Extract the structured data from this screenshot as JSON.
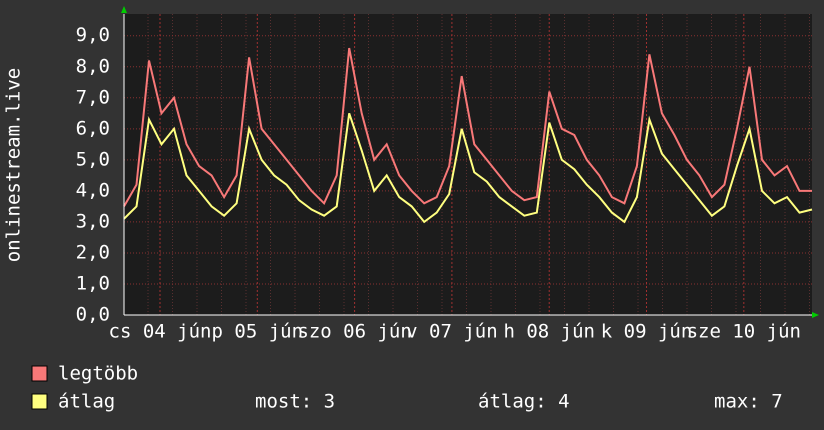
{
  "chart_data": {
    "type": "line",
    "ylabel": "onlinestream.live",
    "ylim": [
      0,
      9.7
    ],
    "yticks": [
      {
        "value": 0,
        "label": "0,0"
      },
      {
        "value": 1,
        "label": "1,0"
      },
      {
        "value": 2,
        "label": "2,0"
      },
      {
        "value": 3,
        "label": "3,0"
      },
      {
        "value": 4,
        "label": "4,0"
      },
      {
        "value": 5,
        "label": "5,0"
      },
      {
        "value": 6,
        "label": "6,0"
      },
      {
        "value": 7,
        "label": "7,0"
      },
      {
        "value": 8,
        "label": "8,0"
      },
      {
        "value": 9,
        "label": "9,0"
      }
    ],
    "xtick_labels": [
      "cs 04 jún",
      "p 05 jún",
      "szo 06 jún",
      "v 07 jún",
      "h 08 jún",
      "k 09 jún",
      "sze 10 jún"
    ],
    "grid": true,
    "series": [
      {
        "name": "legtöbb",
        "color": "#f87878",
        "values": [
          3.5,
          4.2,
          8.2,
          6.5,
          7.0,
          5.5,
          4.8,
          4.5,
          3.8,
          4.5,
          8.3,
          6.0,
          5.5,
          5.0,
          4.5,
          4.0,
          3.6,
          4.5,
          8.6,
          6.5,
          5.0,
          5.5,
          4.5,
          4.0,
          3.6,
          3.8,
          4.8,
          7.7,
          5.5,
          5.0,
          4.5,
          4.0,
          3.7,
          3.8,
          7.2,
          6.0,
          5.8,
          5.0,
          4.5,
          3.8,
          3.6,
          4.8,
          8.4,
          6.5,
          5.8,
          5.0,
          4.5,
          3.8,
          4.2,
          6.0,
          8.0,
          5.0,
          4.5,
          4.8,
          4.0,
          4.0
        ]
      },
      {
        "name": "átlag",
        "color": "#ffff80",
        "values": [
          3.1,
          3.5,
          6.3,
          5.5,
          6.0,
          4.5,
          4.0,
          3.5,
          3.2,
          3.6,
          6.0,
          5.0,
          4.5,
          4.2,
          3.7,
          3.4,
          3.2,
          3.5,
          6.5,
          5.3,
          4.0,
          4.5,
          3.8,
          3.5,
          3.0,
          3.3,
          3.9,
          6.0,
          4.6,
          4.3,
          3.8,
          3.5,
          3.2,
          3.3,
          6.2,
          5.0,
          4.7,
          4.2,
          3.8,
          3.3,
          3.0,
          3.8,
          6.3,
          5.2,
          4.7,
          4.2,
          3.7,
          3.2,
          3.5,
          4.8,
          6.0,
          4.0,
          3.6,
          3.8,
          3.3,
          3.4
        ]
      }
    ],
    "stats": [
      "most: 3",
      "átlag: 4",
      "max: 7"
    ]
  }
}
